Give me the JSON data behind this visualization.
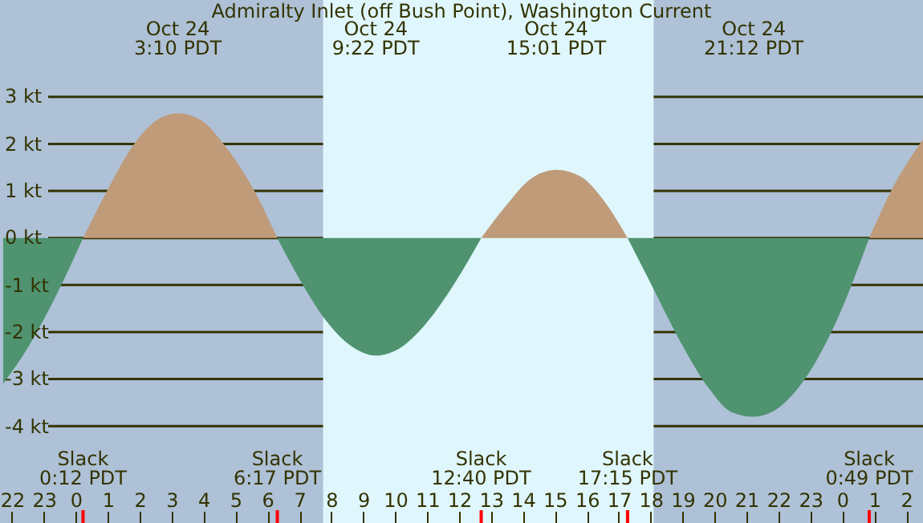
{
  "chart_data": {
    "type": "area",
    "title": "Admiralty Inlet (off Bush Point), Washington Current",
    "x": [
      "--10-23T21:42",
      "--10-23T22:30",
      "--10-23T23:18",
      "--10-24T00:12",
      "--10-24T00:57",
      "--10-24T01:42",
      "--10-24T02:24",
      "--10-24T03:10",
      "--10-24T03:54",
      "--10-24T04:36",
      "--10-24T05:24",
      "--10-24T06:17",
      "--10-24T07:00",
      "--10-24T07:48",
      "--10-24T08:36",
      "--10-24T09:22",
      "--10-24T10:06",
      "--10-24T10:54",
      "--10-24T11:48",
      "--10-24T12:40",
      "--10-24T13:24",
      "--10-24T14:12",
      "--10-24T15:01",
      "--10-24T15:48",
      "--10-24T16:30",
      "--10-24T17:15",
      "--10-24T18:00",
      "--10-24T18:54",
      "--10-24T19:48",
      "--10-24T20:30",
      "--10-24T21:12",
      "--10-24T22:00",
      "--10-24T22:48",
      "--10-24T23:42",
      "--10-25T00:49",
      "--10-25T01:30",
      "--10-25T02:30"
    ],
    "series": [
      {
        "color": "#bf9b7a",
        "values": [
          null,
          null,
          null,
          0,
          1.0,
          1.9,
          2.45,
          2.65,
          2.5,
          2.0,
          1.2,
          0,
          null,
          null,
          null,
          null,
          null,
          null,
          null,
          0,
          0.65,
          1.25,
          1.45,
          1.3,
          0.8,
          0,
          null,
          null,
          null,
          null,
          null,
          null,
          null,
          null,
          0,
          1.0,
          2.1
        ]
      },
      {
        "color": "#4f9370",
        "values": [
          -3.1,
          -2.3,
          -1.3,
          0,
          null,
          null,
          null,
          null,
          null,
          null,
          null,
          0,
          -0.9,
          -1.75,
          -2.3,
          -2.5,
          -2.35,
          -1.85,
          -1.0,
          0,
          null,
          null,
          null,
          null,
          null,
          0,
          -1.0,
          -2.2,
          -3.2,
          -3.7,
          -3.8,
          -3.6,
          -3.0,
          -1.9,
          0,
          null,
          null
        ]
      }
    ],
    "xlim": [
      "--10-23T21:36",
      "--10-25T02:30"
    ],
    "x2lim": [
      "--10-23T21:36",
      "--10-25T02:30"
    ],
    "x2ticks": [
      {
        "value": "--10-24T03:10",
        "label": "Oct 24\n3:10 PDT"
      },
      {
        "value": "--10-24T09:22",
        "label": "Oct 24\n9:22 PDT"
      },
      {
        "value": "--10-24T15:01",
        "label": "Oct 24\n15:01 PDT"
      },
      {
        "value": "--10-24T21:12",
        "label": "Oct 24\n21:12 PDT"
      }
    ],
    "xticks": [
      {
        "value": "--10-23T22:00",
        "label": "22"
      },
      {
        "value": "--10-23T23:00",
        "label": "23"
      },
      {
        "value": "--10-24T00:00",
        "label": "0"
      },
      {
        "value": "--10-24T01:00",
        "label": "1"
      },
      {
        "value": "--10-24T02:00",
        "label": "2"
      },
      {
        "value": "--10-24T03:00",
        "label": "3"
      },
      {
        "value": "--10-24T04:00",
        "label": "4"
      },
      {
        "value": "--10-24T05:00",
        "label": "5"
      },
      {
        "value": "--10-24T06:00",
        "label": "6"
      },
      {
        "value": "--10-24T07:00",
        "label": "7"
      },
      {
        "value": "--10-24T08:00",
        "label": "8"
      },
      {
        "value": "--10-24T09:00",
        "label": "9"
      },
      {
        "value": "--10-24T10:00",
        "label": "10"
      },
      {
        "value": "--10-24T11:00",
        "label": "11"
      },
      {
        "value": "--10-24T12:00",
        "label": "12"
      },
      {
        "value": "--10-24T13:00",
        "label": "13"
      },
      {
        "value": "--10-24T14:00",
        "label": "14"
      },
      {
        "value": "--10-24T15:00",
        "label": "15"
      },
      {
        "value": "--10-24T16:00",
        "label": "16"
      },
      {
        "value": "--10-24T17:00",
        "label": "17"
      },
      {
        "value": "--10-24T18:00",
        "label": "18"
      },
      {
        "value": "--10-24T19:00",
        "label": "19"
      },
      {
        "value": "--10-24T20:00",
        "label": "20"
      },
      {
        "value": "--10-24T21:00",
        "label": "21"
      },
      {
        "value": "--10-24T22:00",
        "label": "22"
      },
      {
        "value": "--10-24T23:00",
        "label": "23"
      },
      {
        "value": "--10-25T00:00",
        "label": "0"
      },
      {
        "value": "--10-25T01:00",
        "label": "1"
      },
      {
        "value": "--10-25T02:00",
        "label": "2"
      }
    ],
    "ylim": [
      -6.06,
      5.06
    ],
    "yticks": [
      {
        "value": -4,
        "label": "-4 kt"
      },
      {
        "value": -3,
        "label": "-3 kt"
      },
      {
        "value": -2,
        "label": "-2 kt"
      },
      {
        "value": -1,
        "label": "-1 kt"
      },
      {
        "value": 0,
        "label": "0 kt"
      },
      {
        "value": 1,
        "label": "1 kt"
      },
      {
        "value": 2,
        "label": "2 kt"
      },
      {
        "value": 3,
        "label": "3 kt"
      }
    ],
    "grid": "y",
    "bands": [
      {
        "axis": "x",
        "from": "--10-24T07:43",
        "to": "--10-24T18:04",
        "color": "#dff6fc"
      }
    ],
    "ref_lines": [
      {
        "axis": "x",
        "value": "--10-24T00:12",
        "label": "Slack\n0:12 PDT",
        "color": "#ff0000"
      },
      {
        "axis": "x",
        "value": "--10-24T06:17",
        "label": "Slack\n6:17 PDT",
        "color": "#ff0000"
      },
      {
        "axis": "x",
        "value": "--10-24T12:40",
        "label": "Slack\n12:40 PDT",
        "color": "#ff0000"
      },
      {
        "axis": "x",
        "value": "--10-24T17:15",
        "label": "Slack\n17:15 PDT",
        "color": "#ff0000"
      },
      {
        "axis": "x",
        "value": "--10-25T00:49",
        "label": "Slack\n0:49 PDT",
        "color": "#ff0000"
      }
    ]
  }
}
